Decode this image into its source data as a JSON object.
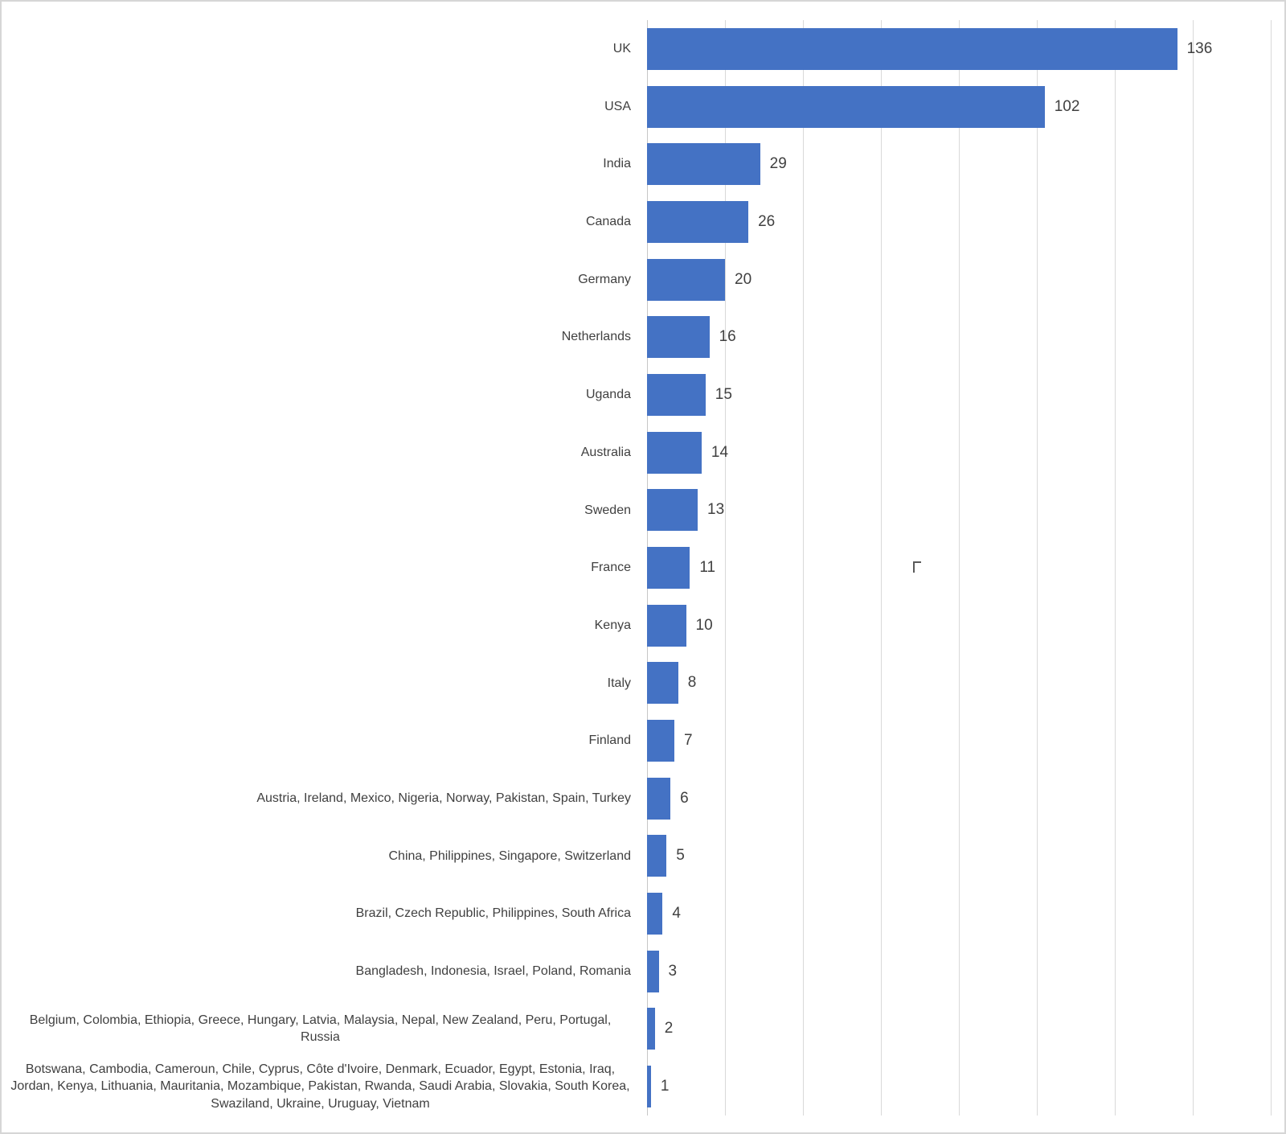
{
  "chart_data": {
    "type": "bar",
    "orientation": "horizontal",
    "title": "",
    "subtitle": "",
    "xlabel": "",
    "ylabel": "",
    "xlim": [
      0,
      160
    ],
    "gridline_interval": 20,
    "grid": true,
    "legend": "none",
    "data_labels": true,
    "bar_color": "#4472C4",
    "text_color": "#404040",
    "gridline_color": "#D9D9D9",
    "axis_line_color": "#C6C6C6",
    "categories": [
      "UK",
      "USA",
      "India",
      "Canada",
      "Germany",
      "Netherlands",
      "Uganda",
      "Australia",
      "Sweden",
      "France",
      "Kenya",
      "Italy",
      "Finland",
      "Austria, Ireland, Mexico, Nigeria, Norway, Pakistan, Spain, Turkey",
      "China, Philippines, Singapore, Switzerland",
      "Brazil, Czech Republic, Philippines, South Africa",
      "Bangladesh, Indonesia, Israel, Poland, Romania",
      "Belgium, Colombia, Ethiopia, Greece, Hungary, Latvia, Malaysia, Nepal, New Zealand, Peru, Portugal, Russia",
      "Botswana, Cambodia, Cameroun, Chile, Cyprus, Côte d'Ivoire, Denmark, Ecuador, Egypt, Estonia, Iraq, Jordan, Kenya, Lithuania, Mauritania, Mozambique, Pakistan, Rwanda, Saudi Arabia, Slovakia, South Korea, Swaziland, Ukraine, Uruguay, Vietnam"
    ],
    "values": [
      136,
      102,
      29,
      26,
      20,
      16,
      15,
      14,
      13,
      11,
      10,
      8,
      7,
      6,
      5,
      4,
      3,
      2,
      1
    ]
  },
  "artifact": {
    "description": "small gray corner-shaped stray mark near center-right of chart"
  }
}
